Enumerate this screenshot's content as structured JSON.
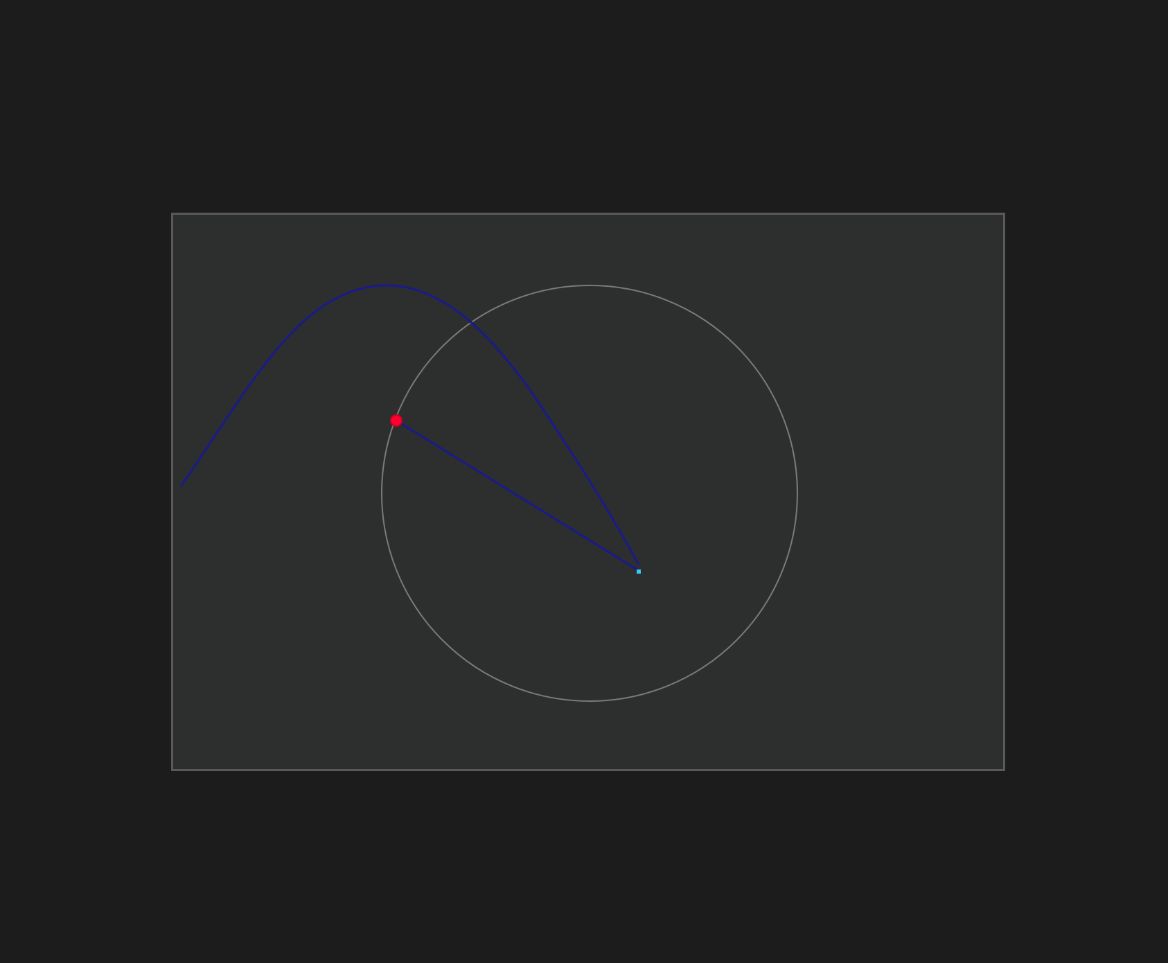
{
  "scene": {
    "background_color": "#1c1c1c",
    "panel_color": "#2d2e2e",
    "panel_border_color": "#5a5a5a",
    "circle_color": "#7a7a7a",
    "curve_color": "#1a1a8c",
    "arm_color": "#1a1a8c",
    "handle_color": "#ff0033",
    "pivot_color": "#33ccee"
  }
}
